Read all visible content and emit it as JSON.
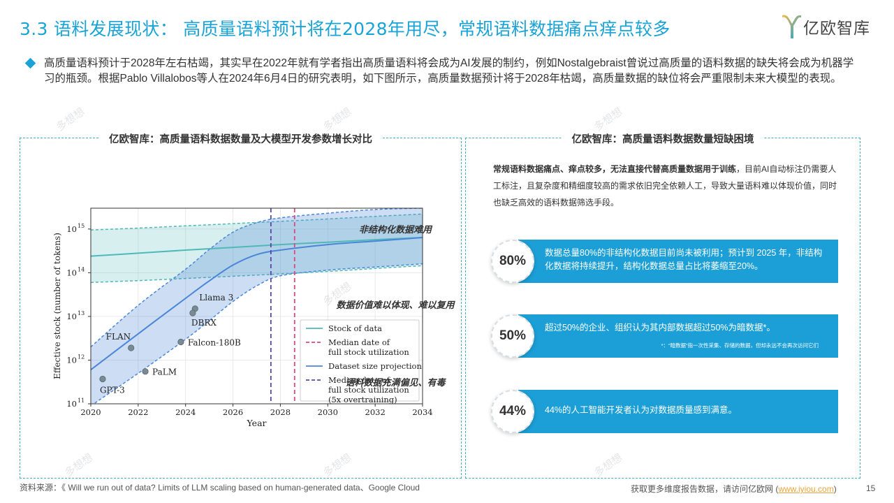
{
  "header": {
    "title": "3.3 语料发展现状： 高质量语料预计将在2028年用尽，常规语料数据痛点痒点较多",
    "logo_text": "亿欧智库"
  },
  "summary": "高质量语料预计于2028年左右枯竭，其实早在2022年就有学者指出高质量语料将会成为AI发展的制约，例如Nostalgebraist曾说过高质量的语料数据的缺失将会成为机器学习的瓶颈。根据Pablo Villalobos等人在2024年6月4日的研究表明，如下图所示，高质量数据预计将于2028年枯竭，高质量数据的缺位将会严重限制未来大模型的表现。",
  "left_panel": {
    "title": "亿欧智库：高质量语料数据数量及大模型开发参数增长对比"
  },
  "right_panel": {
    "title": "亿欧智库：高质量语料数据数量短缺困境",
    "desc_bold": "常规语料数据痛点、痒点较多，无法直接代替高质量数据用于训练",
    "desc_rest": "，目前AI自动标注仍需要人工标注，且复杂度和精细度较高的需求依旧完全依赖人工，导致大量语料难以体现价值，同时也缺乏高效的语料数据筛选手段。",
    "cards": [
      {
        "heading": "非结构化数据难用",
        "percent": "80%",
        "text": "数据总量80%的非结构化数据目前尚未被利用；预计到 2025 年，非结构化数据将持续提升，结构化数据总量占比将萎缩至20%。",
        "note": ""
      },
      {
        "heading": "数据价值难以体现、难以复用",
        "percent": "50%",
        "text": "超过50%的企业、组织认为其内部数据超过50%为暗数据*。",
        "note": "*：“暗数据”指一次性采集、存储的数据，但却永远不会再次访问它们"
      },
      {
        "heading": "语料数据充满偏见、有毒",
        "percent": "44%",
        "text": "44%的人工智能开发者认为对数据质量感到满意。",
        "note": ""
      }
    ]
  },
  "chart_data": {
    "type": "line",
    "xlabel": "Year",
    "ylabel": "Effective stock (number of tokens)",
    "xlim": [
      2020,
      2034
    ],
    "ylim": [
      100000000000.0,
      3000000000000000.0
    ],
    "yscale": "log",
    "x_ticks": [
      2020,
      2022,
      2024,
      2026,
      2028,
      2030,
      2032,
      2034
    ],
    "y_ticks": [
      {
        "value": 100000000000.0,
        "base": "10",
        "exp": "11"
      },
      {
        "value": 1000000000000.0,
        "base": "10",
        "exp": "12"
      },
      {
        "value": 10000000000000.0,
        "base": "10",
        "exp": "13"
      },
      {
        "value": 100000000000000.0,
        "base": "10",
        "exp": "14"
      },
      {
        "value": 1000000000000000.0,
        "base": "10",
        "exp": "15"
      }
    ],
    "grid": true,
    "legend_position": "bottom-right",
    "series": [
      {
        "name": "Stock of data",
        "color": "#4fb8b8",
        "x": [
          2020,
          2022,
          2024,
          2026,
          2028,
          2030,
          2032,
          2034
        ],
        "y": [
          240000000000000.0,
          280000000000000.0,
          330000000000000.0,
          380000000000000.0,
          440000000000000.0,
          500000000000000.0,
          570000000000000.0,
          640000000000000.0
        ],
        "band_low": [
          60000000000000.0,
          66000000000000.0,
          74000000000000.0,
          83000000000000.0,
          94000000000000.0,
          107000000000000.0,
          125000000000000.0,
          145000000000000.0
        ],
        "band_high": [
          950000000000000.0,
          1050000000000000.0,
          1180000000000000.0,
          1330000000000000.0,
          1500000000000000.0,
          1700000000000000.0,
          1950000000000000.0,
          2200000000000000.0
        ]
      },
      {
        "name": "Dataset size projection",
        "color": "#4a86d8",
        "x": [
          2020,
          2022,
          2024,
          2025,
          2026,
          2027,
          2028,
          2030,
          2032,
          2034
        ],
        "y": [
          600000000000.0,
          4000000000000.0,
          26000000000000.0,
          65000000000000.0,
          150000000000000.0,
          260000000000000.0,
          330000000000000.0,
          440000000000000.0,
          530000000000000.0,
          640000000000000.0
        ],
        "band_low": [
          90000000000.0,
          500000000000.0,
          3000000000000.0,
          8000000000000.0,
          22000000000000.0,
          50000000000000.0,
          85000000000000.0,
          115000000000000.0,
          135000000000000.0,
          160000000000000.0
        ],
        "band_high": [
          2000000000000.0,
          18000000000000.0,
          120000000000000.0,
          340000000000000.0,
          850000000000000.0,
          1400000000000000.0,
          1800000000000000.0,
          2300000000000000.0,
          2800000000000000.0,
          3000000000000000.0
        ]
      }
    ],
    "vlines": [
      {
        "name": "Median date of full stock utilization",
        "x": 2028.6,
        "color": "#d9487e"
      },
      {
        "name": "Median date of full stock utilization (5x overtraining)",
        "x": 2027.6,
        "color": "#5a44a8"
      }
    ],
    "legend": [
      {
        "kind": "solid",
        "color": "#4fb8b8",
        "lines": [
          "Stock of data"
        ]
      },
      {
        "kind": "dash",
        "color": "#d9487e",
        "lines": [
          "Median date of",
          "full stock utilization"
        ]
      },
      {
        "kind": "solid",
        "color": "#4a86d8",
        "lines": [
          "Dataset size projection"
        ]
      },
      {
        "kind": "dash",
        "color": "#5a44a8",
        "lines": [
          "Median date of",
          "full stock utilization",
          "(5x overtraining)"
        ]
      }
    ],
    "points": [
      {
        "label": "GPT-3",
        "x": 2020.5,
        "y": 370000000000.0,
        "label_pos": "below"
      },
      {
        "label": "FLAN",
        "x": 2021.7,
        "y": 1900000000000.0,
        "label_pos": "above-left"
      },
      {
        "label": "PaLM",
        "x": 2022.3,
        "y": 550000000000.0,
        "label_pos": "right"
      },
      {
        "label": "Llama 3",
        "x": 2024.4,
        "y": 15000000000000.0,
        "label_pos": "above-right"
      },
      {
        "label": "DBRX",
        "x": 2024.3,
        "y": 12000000000000.0,
        "label_pos": "below-right"
      },
      {
        "label": "Falcon-180B",
        "x": 2023.8,
        "y": 2600000000000.0,
        "label_pos": "right"
      }
    ]
  },
  "watermark": "多想想",
  "footer": {
    "source": "资料来源：《 Will we run out of data? Limits of LLM scaling based on human-generated data、Google Cloud",
    "more_prefix": "获取更多维度报告数据，请访问亿欧网 (",
    "more_link": "www.iyiou.com",
    "more_suffix": ")",
    "page": "15"
  }
}
